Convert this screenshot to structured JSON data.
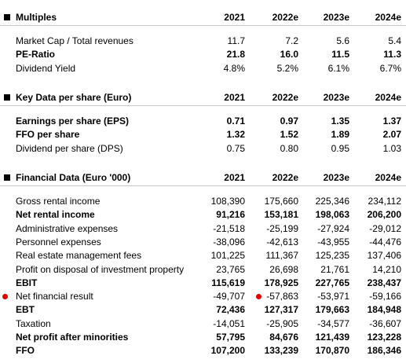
{
  "sections": [
    {
      "title": "Multiples",
      "columns": [
        "2021",
        "2022e",
        "2023e",
        "2024e"
      ],
      "rows": [
        {
          "label": "Market Cap / Total revenues",
          "values": [
            "11.7",
            "7.2",
            "5.6",
            "5.4"
          ],
          "bold": false
        },
        {
          "label": "PE-Ratio",
          "values": [
            "21.8",
            "16.0",
            "11.5",
            "11.3"
          ],
          "bold": true
        },
        {
          "label": "Dividend Yield",
          "values": [
            "4.8%",
            "5.2%",
            "6.1%",
            "6.7%"
          ],
          "bold": false
        }
      ]
    },
    {
      "title": "Key Data per share (Euro)",
      "columns": [
        "2021",
        "2022e",
        "2023e",
        "2024e"
      ],
      "rows": [
        {
          "label": "Earnings per share (EPS)",
          "values": [
            "0.71",
            "0.97",
            "1.35",
            "1.37"
          ],
          "bold": true
        },
        {
          "label": "FFO per share",
          "values": [
            "1.32",
            "1.52",
            "1.89",
            "2.07"
          ],
          "bold": true
        },
        {
          "label": "Dividend per share (DPS)",
          "values": [
            "0.75",
            "0.80",
            "0.95",
            "1.03"
          ],
          "bold": false
        }
      ]
    },
    {
      "title": "Financial Data (Euro '000)",
      "columns": [
        "2021",
        "2022e",
        "2023e",
        "2024e"
      ],
      "rows": [
        {
          "label": "Gross rental income",
          "values": [
            "108,390",
            "175,660",
            "225,346",
            "234,112"
          ],
          "bold": false
        },
        {
          "label": "Net rental income",
          "values": [
            "91,216",
            "153,181",
            "198,063",
            "206,200"
          ],
          "bold": true
        },
        {
          "label": "Administrative expenses",
          "values": [
            "-21,518",
            "-25,199",
            "-27,924",
            "-29,012"
          ],
          "bold": false
        },
        {
          "label": "Personnel expenses",
          "values": [
            "-38,096",
            "-42,613",
            "-43,955",
            "-44,476"
          ],
          "bold": false
        },
        {
          "label": "Real estate management fees",
          "values": [
            "101,225",
            "111,367",
            "125,235",
            "137,406"
          ],
          "bold": false
        },
        {
          "label": "Profit on disposal of investment property",
          "values": [
            "23,765",
            "26,698",
            "21,761",
            "14,210"
          ],
          "bold": false
        },
        {
          "label": "EBIT",
          "values": [
            "115,619",
            "178,925",
            "227,765",
            "238,437"
          ],
          "bold": true
        },
        {
          "label": "Net financial result",
          "values": [
            "-49,707",
            "-57,863",
            "-53,971",
            "-59,166"
          ],
          "bold": false
        },
        {
          "label": "EBT",
          "values": [
            "72,436",
            "127,317",
            "179,663",
            "184,948"
          ],
          "bold": true
        },
        {
          "label": "Taxation",
          "values": [
            "-14,051",
            "-25,905",
            "-34,577",
            "-36,607"
          ],
          "bold": false
        },
        {
          "label": "Net profit after minorities",
          "values": [
            "57,795",
            "84,676",
            "121,439",
            "123,228"
          ],
          "bold": true
        },
        {
          "label": "FFO",
          "values": [
            "107,200",
            "133,239",
            "170,870",
            "186,346"
          ],
          "bold": true
        }
      ]
    }
  ]
}
